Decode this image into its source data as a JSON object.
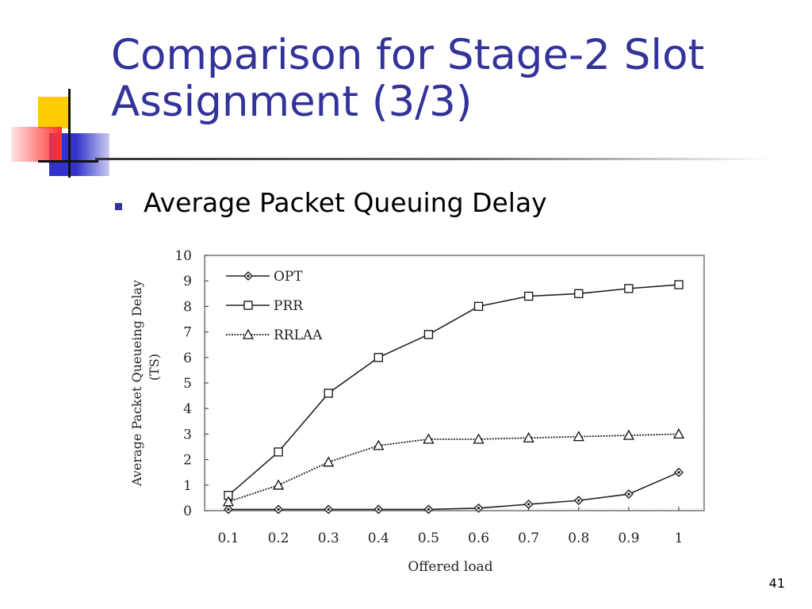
{
  "slide": {
    "title_line1": "Comparison for Stage-2 Slot",
    "title_line2": "Assignment (3/3)",
    "bullet": "Average Packet Queuing Delay",
    "page_number": "41"
  },
  "colors": {
    "title": "#333399",
    "bullet": "#333399",
    "deco_yellow": "#FFCC00",
    "deco_blue": "#3333CC",
    "deco_red": "#FF3333"
  },
  "chart_data": {
    "type": "line",
    "xlabel": "Offered load",
    "ylabel_line1": "Average Packet Queueing Delay",
    "ylabel_line2": "(TS)",
    "xlim": [
      0.1,
      1.0
    ],
    "ylim": [
      0,
      10
    ],
    "x_ticks": [
      "0.1",
      "0.2",
      "0.3",
      "0.4",
      "0.5",
      "0.6",
      "0.7",
      "0.8",
      "0.9",
      "1"
    ],
    "y_ticks": [
      "0",
      "1",
      "2",
      "3",
      "4",
      "5",
      "6",
      "7",
      "8",
      "9",
      "10"
    ],
    "x": [
      0.1,
      0.2,
      0.3,
      0.4,
      0.5,
      0.6,
      0.7,
      0.8,
      0.9,
      1.0
    ],
    "legend_position": "top-left",
    "grid": false,
    "series": [
      {
        "name": "OPT",
        "marker": "diamond",
        "dash": "solid",
        "values": [
          0.05,
          0.05,
          0.05,
          0.05,
          0.05,
          0.1,
          0.25,
          0.4,
          0.65,
          1.5
        ]
      },
      {
        "name": "PRR",
        "marker": "square",
        "dash": "solid",
        "values": [
          0.6,
          2.3,
          4.6,
          6.0,
          6.9,
          8.0,
          8.4,
          8.5,
          8.7,
          8.85
        ]
      },
      {
        "name": "RRLAA",
        "marker": "triangle",
        "dash": "dotted",
        "values": [
          0.35,
          1.0,
          1.9,
          2.55,
          2.8,
          2.8,
          2.85,
          2.9,
          2.95,
          3.0
        ]
      }
    ]
  }
}
